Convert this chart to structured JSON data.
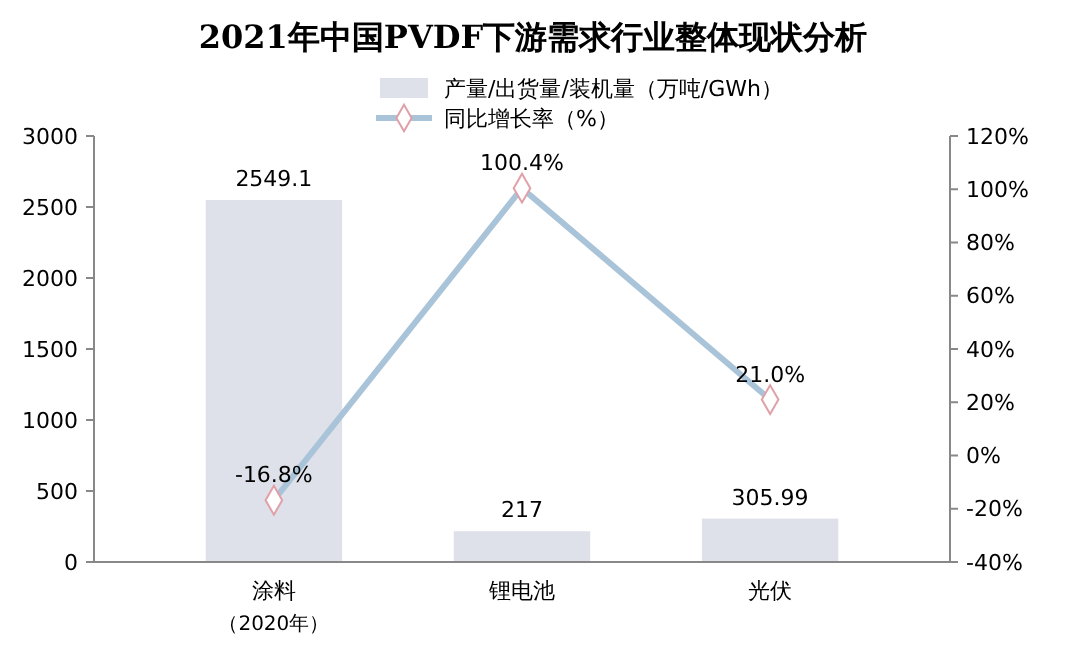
{
  "chart_data": {
    "type": "bar",
    "title": "2021年中国PVDF下游需求行业整体现状分析",
    "categories": [
      "涂料（2020年）",
      "锂电池",
      "光伏"
    ],
    "series": [
      {
        "name": "产量/出货量/装机量（万吨/GWh）",
        "color": "#dfe1ea",
        "values": [
          2549.1,
          217,
          305.99
        ],
        "value_labels": [
          "2549.1",
          "217",
          "305.99"
        ]
      },
      {
        "name": "同比增长率（%）",
        "type": "line",
        "axis": "y2",
        "color": "#a9c4d9",
        "marker": "diamond",
        "values": [
          -16.8,
          100.4,
          21.0
        ],
        "value_labels": [
          "-16.8%",
          "100.4%",
          "21.0%"
        ]
      }
    ],
    "ylim": [
      0,
      3000
    ],
    "yticks": [
      0,
      500,
      1000,
      1500,
      2000,
      2500,
      3000
    ],
    "y2lim": [
      -40,
      120
    ],
    "y2ticks": [
      {
        "value": -40,
        "label": "-40%"
      },
      {
        "value": -20,
        "label": "-20%"
      },
      {
        "value": 0,
        "label": "0%"
      },
      {
        "value": 20,
        "label": "20%"
      },
      {
        "value": 40,
        "label": "40%"
      },
      {
        "value": 60,
        "label": "60%"
      },
      {
        "value": 80,
        "label": "80%"
      },
      {
        "value": 100,
        "label": "100%"
      },
      {
        "value": 120,
        "label": "120%"
      }
    ],
    "grid": false,
    "legend": "top"
  }
}
